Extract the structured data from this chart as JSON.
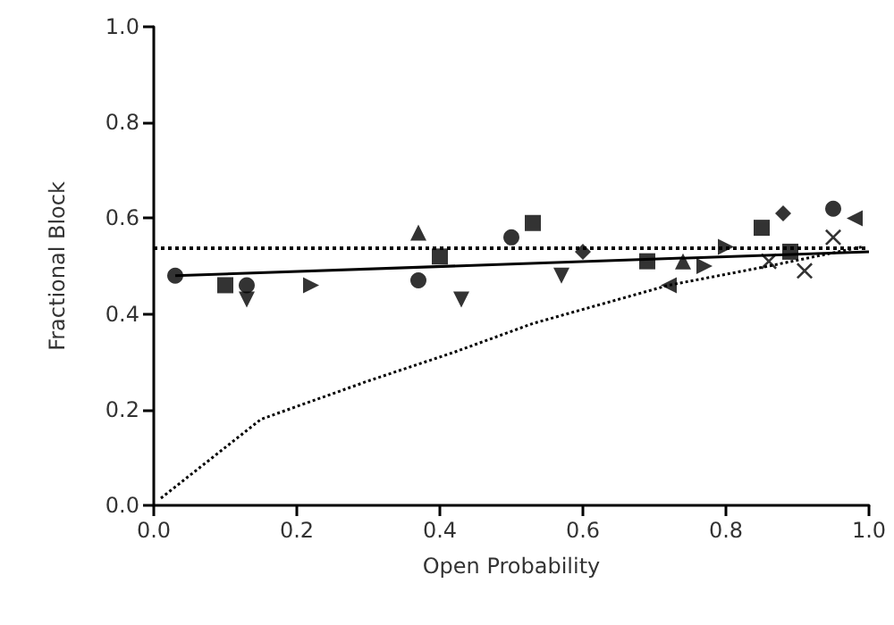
{
  "chart_data": {
    "type": "scatter",
    "xlabel": "Open Probability",
    "ylabel": "Fractional Block",
    "xlim": [
      0,
      1
    ],
    "xticks": [
      {
        "value": 0,
        "label": "0.0"
      },
      0.2,
      0.4,
      0.6,
      0.8,
      {
        "value": 1,
        "label": "1.0"
      }
    ],
    "ylim": [
      0,
      1
    ],
    "yticks": [
      {
        "value": 0,
        "label": "0.0"
      },
      0.2,
      0.4,
      0.6,
      0.8,
      {
        "value": 1,
        "label": "1.0"
      }
    ],
    "grid": false,
    "series": [
      {
        "color": "#000000",
        "marker": "circle",
        "x": [
          0.03,
          0.37
        ],
        "values": [
          0.48,
          0.47
        ]
      },
      {
        "color": "#000000",
        "marker": "square",
        "x": [
          0.1,
          0.4,
          0.53,
          0.69,
          0.85,
          0.89
        ],
        "values": [
          0.46,
          0.52,
          0.59,
          0.51,
          0.58,
          0.53
        ]
      },
      {
        "color": "#000000",
        "marker": "triangle",
        "x": [
          0.37,
          0.74
        ],
        "values": [
          0.57,
          0.51
        ]
      },
      {
        "color": "#000000",
        "marker": "triangle-down",
        "x": [
          0.13,
          0.43,
          0.57
        ],
        "values": [
          0.43,
          0.43,
          0.48
        ]
      },
      {
        "color": "#000000",
        "marker": "triangle-right",
        "x": [
          0.22,
          0.77,
          0.8
        ],
        "values": [
          0.46,
          0.5,
          0.54
        ]
      },
      {
        "color": "#000000",
        "x": [
          0.13,
          0.5,
          0.95
        ],
        "values": [
          0.46,
          0.56,
          0.62
        ]
      },
      {
        "color": "#000000",
        "marker": "diamond",
        "x": [
          0.6,
          0.88
        ],
        "values": [
          0.53,
          0.61
        ]
      },
      {
        "color": "#000000",
        "marker": "triangle-left",
        "x": [
          0.72,
          0.98
        ],
        "values": [
          0.46,
          0.6
        ]
      },
      {
        "color": "#000000",
        "marker": "cross",
        "x": [
          0.86,
          0.91,
          0.95
        ],
        "values": [
          0.51,
          0.49,
          0.56
        ]
      },
      {
        "type": "line",
        "color": "#000000",
        "line_style": "solid",
        "marker": "none",
        "x": [
          0.03,
          1.0
        ],
        "values": [
          0.48,
          0.53
        ]
      },
      {
        "type": "line",
        "color": "#000000",
        "line_style": "dotted",
        "marker": "none",
        "x": [
          0.01,
          0.15,
          0.3,
          0.42,
          0.53,
          0.72,
          0.86,
          0.99
        ],
        "values": [
          0.015,
          0.18,
          0.26,
          0.32,
          0.38,
          0.46,
          0.5,
          0.54
        ]
      }
    ],
    "ref_lines": [
      {
        "axis": "y",
        "value": 0.54,
        "line_style": "dotted",
        "color": "#000000"
      }
    ]
  }
}
